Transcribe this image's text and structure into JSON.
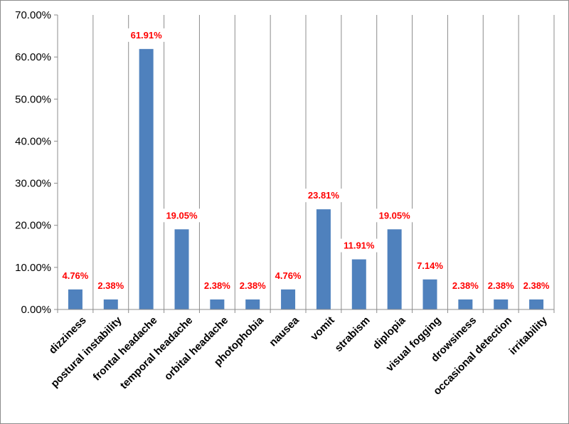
{
  "chart_data": {
    "type": "bar",
    "title": "",
    "xlabel": "",
    "ylabel": "",
    "categories": [
      "dizziness",
      "postural instability",
      "frontal headache",
      "temporal headache",
      "orbital headache",
      "photophobia",
      "nausea",
      "vomit",
      "strabism",
      "diplopia",
      "visual fogging",
      "drowsiness",
      "occasional detection",
      "irritability"
    ],
    "values": [
      4.76,
      2.38,
      61.91,
      19.05,
      2.38,
      2.38,
      4.76,
      23.81,
      11.91,
      19.05,
      7.14,
      2.38,
      2.38,
      2.38
    ],
    "data_labels": [
      "4.76%",
      "2.38%",
      "61.91%",
      "19.05%",
      "2.38%",
      "2.38%",
      "4.76%",
      "23.81%",
      "11.91%",
      "19.05%",
      "7.14%",
      "2.38%",
      "2.38%",
      "2.38%"
    ],
    "ylim": [
      0,
      70
    ],
    "y_ticks": [
      0,
      10,
      20,
      30,
      40,
      50,
      60,
      70
    ],
    "y_tick_labels": [
      "0.00%",
      "10.00%",
      "20.00%",
      "30.00%",
      "40.00%",
      "50.00%",
      "60.00%",
      "70.00%"
    ],
    "grid": "vertical",
    "legend": "none",
    "colors": {
      "bar": "#4f81bd",
      "data_label": "#ff0000",
      "grid": "#8c8c8c",
      "axis": "#8c8c8c"
    }
  }
}
